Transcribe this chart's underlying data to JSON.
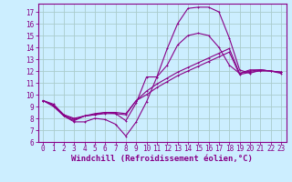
{
  "background_color": "#cceeff",
  "grid_color": "#aacccc",
  "line_color": "#880088",
  "markersize": 2.0,
  "linewidth": 0.8,
  "xlabel": "Windchill (Refroidissement éolien,°C)",
  "xlabel_fontsize": 6.5,
  "tick_fontsize": 5.5,
  "xlim": [
    -0.5,
    23.5
  ],
  "ylim": [
    6,
    17.7
  ],
  "yticks": [
    6,
    7,
    8,
    9,
    10,
    11,
    12,
    13,
    14,
    15,
    16,
    17
  ],
  "xticks": [
    0,
    1,
    2,
    3,
    4,
    5,
    6,
    7,
    8,
    9,
    10,
    11,
    12,
    13,
    14,
    15,
    16,
    17,
    18,
    19,
    20,
    21,
    22,
    23
  ],
  "series": [
    [
      9.5,
      9.1,
      8.2,
      7.8,
      8.2,
      8.3,
      8.4,
      8.4,
      7.8,
      9.3,
      11.5,
      11.5,
      13.9,
      16.0,
      17.3,
      17.4,
      17.4,
      17.0,
      14.8,
      12.1,
      11.8,
      12.1,
      12.0,
      11.9
    ],
    [
      9.5,
      9.0,
      8.2,
      7.7,
      7.7,
      8.0,
      7.9,
      7.5,
      6.5,
      7.7,
      9.4,
      11.5,
      12.5,
      14.2,
      15.0,
      15.2,
      15.0,
      14.0,
      12.5,
      11.8,
      12.1,
      12.1,
      12.0,
      11.9
    ],
    [
      9.5,
      9.1,
      8.3,
      7.9,
      8.2,
      8.3,
      8.5,
      8.4,
      8.3,
      9.5,
      10.3,
      10.9,
      11.4,
      11.9,
      12.3,
      12.7,
      13.1,
      13.5,
      13.9,
      11.8,
      12.0,
      12.1,
      12.0,
      11.8
    ],
    [
      9.5,
      9.2,
      8.3,
      8.0,
      8.2,
      8.4,
      8.5,
      8.5,
      8.4,
      9.5,
      10.0,
      10.6,
      11.1,
      11.6,
      12.0,
      12.4,
      12.8,
      13.2,
      13.6,
      11.7,
      11.9,
      12.0,
      12.0,
      11.9
    ]
  ]
}
